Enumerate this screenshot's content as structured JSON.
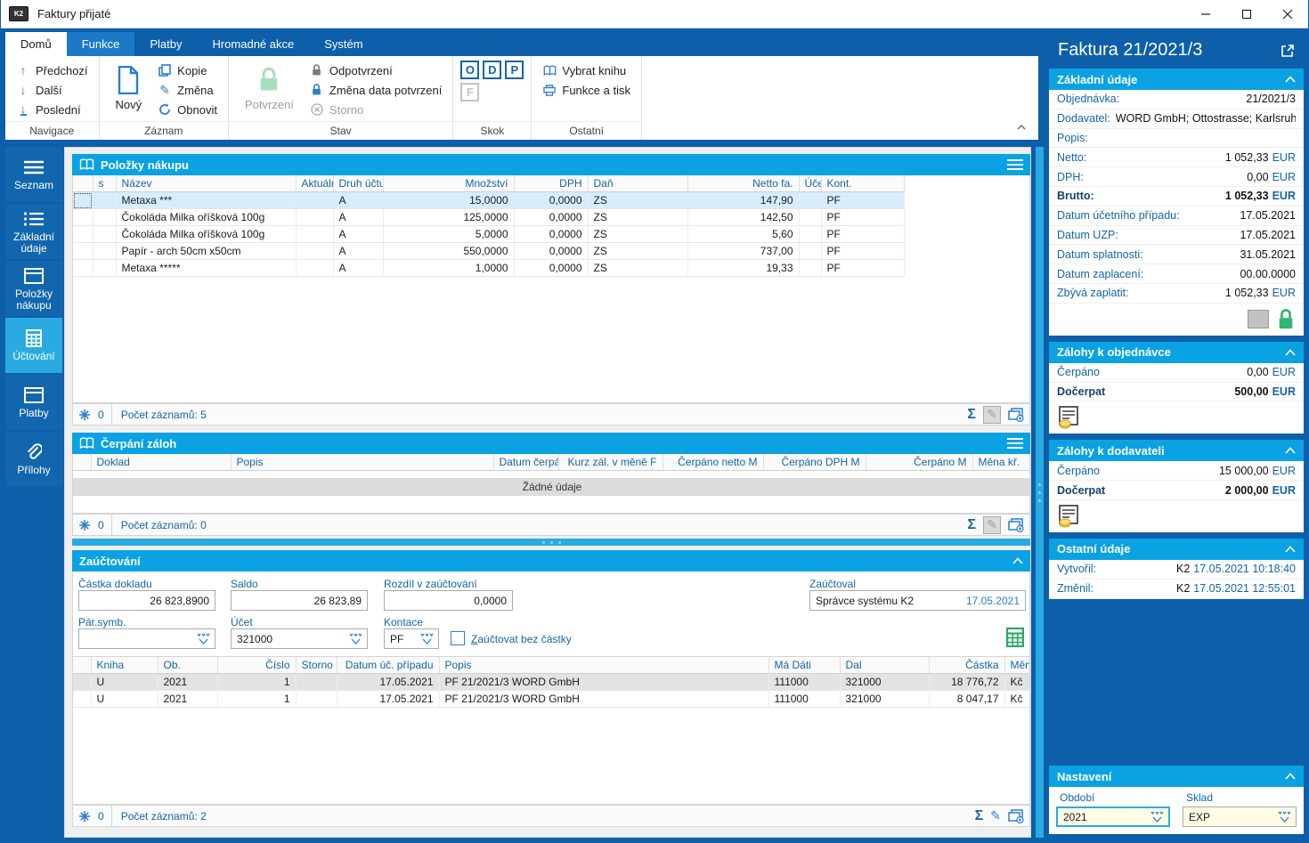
{
  "window": {
    "title": "Faktury přijaté"
  },
  "icons": {
    "logo": "K2",
    "up": "↑",
    "down": "↓",
    "sum": "Σ",
    "pencil": "✎"
  },
  "tabs": [
    {
      "label": "Domů"
    },
    {
      "label": "Funkce"
    },
    {
      "label": "Platby"
    },
    {
      "label": "Hromadné akce"
    },
    {
      "label": "Systém"
    }
  ],
  "ribbon": {
    "predchozi": "Předchozí",
    "dalsi": "Další",
    "posledni": "Poslední",
    "novy": "Nový",
    "kopie": "Kopie",
    "zmena": "Změna",
    "obnovit": "Obnovit",
    "potvrzeni": "Potvrzení",
    "odpotvrzeni": "Odpotvrzení",
    "zmena_data": "Změna data potvrzení",
    "storno": "Storno",
    "skok_boxes": [
      "O",
      "D",
      "P",
      "F"
    ],
    "vybrat_knihu": "Vybrat knihu",
    "funkce_tisk": "Funkce a tisk",
    "groups": {
      "navigace": "Navigace",
      "zaznam": "Záznam",
      "stav": "Stav",
      "skok": "Skok",
      "ostatni": "Ostatní"
    }
  },
  "sidebar": {
    "items": [
      {
        "label": "Seznam"
      },
      {
        "label": "Základní údaje"
      },
      {
        "label": "Položky nákupu"
      },
      {
        "label": "Účtování"
      },
      {
        "label": "Platby"
      },
      {
        "label": "Přílohy"
      }
    ]
  },
  "polozky": {
    "title": "Položky nákupu",
    "columns": [
      "",
      "s",
      "Název",
      "Aktuální",
      "Druh účtu",
      "Množství",
      "DPH",
      "Daň",
      "Netto fa.",
      "Účet",
      "Kont."
    ],
    "rows": [
      [
        "",
        "",
        "Metaxa ***",
        "",
        "A",
        "15,0000",
        "0,0000",
        "ZS",
        "147,90",
        "",
        "PF"
      ],
      [
        "",
        "",
        "Čokoláda Milka oříšková 100g",
        "",
        "A",
        "125,0000",
        "0,0000",
        "ZS",
        "142,50",
        "",
        "PF"
      ],
      [
        "",
        "",
        "Čokoláda Milka oříšková 100g",
        "",
        "A",
        "5,0000",
        "0,0000",
        "ZS",
        "5,60",
        "",
        "PF"
      ],
      [
        "",
        "",
        "Papír - arch 50cm x50cm",
        "",
        "A",
        "550,0000",
        "0,0000",
        "ZS",
        "737,00",
        "",
        "PF"
      ],
      [
        "",
        "",
        "Metaxa *****",
        "",
        "A",
        "1,0000",
        "0,0000",
        "ZS",
        "19,33",
        "",
        "PF"
      ]
    ],
    "footer": {
      "frozen": "0",
      "count": "Počet záznamů: 5"
    }
  },
  "cerpani": {
    "title": "Čerpání záloh",
    "columns": [
      "",
      "Doklad",
      "Popis",
      "Datum čerpání",
      "Kurz zál. v měně F",
      "Čerpáno netto M",
      "Čerpáno DPH M",
      "Čerpáno M",
      "Měna kř."
    ],
    "rows": [],
    "empty_text": "Žádné údaje",
    "footer": {
      "frozen": "0",
      "count": "Počet záznamů: 0"
    }
  },
  "zauctovani": {
    "title": "Zaúčtování",
    "fields": {
      "castka_label": "Částka dokladu",
      "castka_value": "26 823,8900",
      "saldo_label": "Saldo",
      "saldo_value": "26 823,89",
      "rozdil_label": "Rozdíl v zaúčtování",
      "rozdil_value": "0,0000",
      "zauctoval_label": "Zaúčtoval",
      "zauctoval_value": "Správce systému K2",
      "zauctoval_date": "17.05.2021",
      "par_label": "Pár.symb.",
      "par_value": "",
      "ucet_label": "Účet",
      "ucet_value": "321000",
      "kontace_label": "Kontace",
      "kontace_value": "PF",
      "checkbox_label": "Zaúčtovat bez částky"
    },
    "columns": [
      "",
      "Kniha",
      "Ob.",
      "Číslo",
      "Storno",
      "Datum úč. případu",
      "Popis",
      "Má Dáti",
      "Dal",
      "Částka",
      "Měna"
    ],
    "rows": [
      [
        "",
        "U",
        "2021",
        "1",
        "",
        "17.05.2021",
        "PF 21/2021/3 WORD GmbH",
        "111000",
        "321000",
        "18 776,72",
        "Kč"
      ],
      [
        "",
        "U",
        "2021",
        "1",
        "",
        "17.05.2021",
        "PF 21/2021/3 WORD GmbH",
        "111000",
        "321000",
        "8 047,17",
        "Kč"
      ]
    ],
    "footer": {
      "frozen": "0",
      "count": "Počet záznamů: 2"
    }
  },
  "detail": {
    "title": "Faktura 21/2021/3",
    "zakladni": {
      "title": "Základní údaje",
      "rows": [
        {
          "label": "Objednávka:",
          "value": "21/2021/3"
        },
        {
          "label": "Dodavatel:",
          "value": "WORD GmbH; Ottostrasse; Karlsruhe;"
        },
        {
          "label": "Popis:",
          "value": ""
        },
        {
          "label": "Netto:",
          "value": "1 052,33",
          "suffix": "EUR"
        },
        {
          "label": "DPH:",
          "value": "0,00",
          "suffix": "EUR"
        },
        {
          "label": "Brutto:",
          "value": "1 052,33",
          "suffix": "EUR",
          "bold": true
        },
        {
          "label": "Datum účetního případu:",
          "value": "17.05.2021"
        },
        {
          "label": "Datum UZP:",
          "value": "17.05.2021"
        },
        {
          "label": "Datum splatnosti:",
          "value": "31.05.2021"
        },
        {
          "label": "Datum zaplacení:",
          "value": "00.00.0000"
        },
        {
          "label": "Zbývá zaplatit:",
          "value": "1 052,33",
          "suffix": "EUR"
        }
      ]
    },
    "zalohy_obj": {
      "title": "Zálohy k objednávce",
      "rows": [
        {
          "label": "Čerpáno",
          "value": "0,00",
          "suffix": "EUR"
        },
        {
          "label": "Dočerpat",
          "value": "500,00",
          "suffix": "EUR",
          "bold": true
        }
      ]
    },
    "zalohy_dod": {
      "title": "Zálohy k dodavateli",
      "rows": [
        {
          "label": "Čerpáno",
          "value": "15 000,00",
          "suffix": "EUR"
        },
        {
          "label": "Dočerpat",
          "value": "2 000,00",
          "suffix": "EUR",
          "bold": true
        }
      ]
    },
    "ostatni": {
      "title": "Ostatní údaje",
      "rows": [
        {
          "label": "Vytvořil:",
          "value": "K2",
          "suffix": "17.05.2021 10:18:40"
        },
        {
          "label": "Změnil:",
          "value": "K2",
          "suffix": "17.05.2021 12:55:01"
        }
      ]
    },
    "nastaveni": {
      "title": "Nastavení",
      "obdobi_label": "Období",
      "obdobi_value": "2021",
      "sklad_label": "Sklad",
      "sklad_value": "EXP"
    }
  }
}
